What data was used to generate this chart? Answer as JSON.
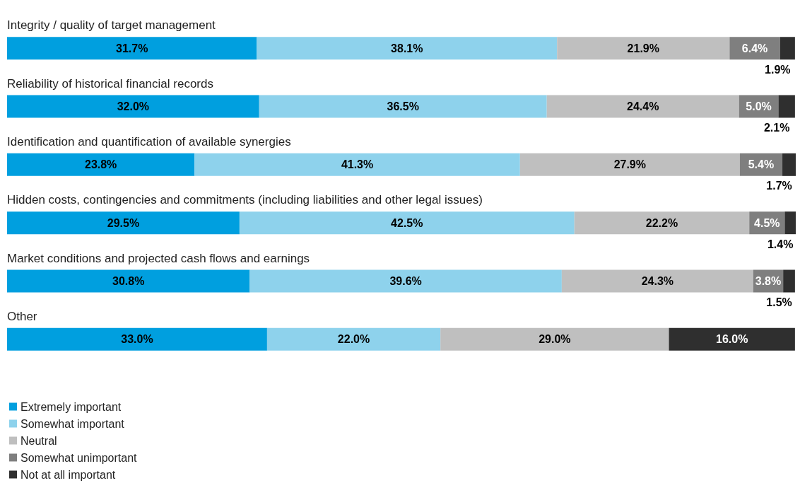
{
  "chart_data": {
    "type": "bar",
    "orientation": "horizontal",
    "stacked": true,
    "legend": "bottom left",
    "categories": [
      "Integrity / quality of target management",
      "Reliability of historical financial records",
      "Identification and quantification of available synergies",
      "Hidden costs, contingencies and commitments (including liabilities and other legal issues)",
      "Market conditions and projected cash flows and earnings",
      "Other"
    ],
    "series": [
      {
        "name": "Extremely important",
        "color": "#009fdf",
        "values": [
          31.7,
          32.0,
          23.8,
          29.5,
          30.8,
          33.0
        ],
        "value_labels": [
          "31.7%",
          "32.0%",
          "23.8%",
          "29.5%",
          "30.8%",
          "33.0%"
        ]
      },
      {
        "name": "Somewhat important",
        "color": "#8ed2ec",
        "values": [
          38.1,
          36.5,
          41.3,
          42.5,
          39.6,
          22.0
        ],
        "value_labels": [
          "38.1%",
          "36.5%",
          "41.3%",
          "42.5%",
          "39.6%",
          "22.0%"
        ]
      },
      {
        "name": "Neutral",
        "color": "#bfbfbf",
        "values": [
          21.9,
          24.4,
          27.9,
          22.2,
          24.3,
          29.0
        ],
        "value_labels": [
          "21.9%",
          "24.4%",
          "27.9%",
          "22.2%",
          "24.3%",
          "29.0%"
        ]
      },
      {
        "name": "Somewhat unimportant",
        "color": "#7f7f7f",
        "values": [
          6.4,
          5.0,
          5.4,
          4.5,
          3.8,
          null
        ],
        "value_labels": [
          "6.4%",
          "5.0%",
          "5.4%",
          "4.5%",
          "3.8%",
          null
        ]
      },
      {
        "name": "Not at all important",
        "color": "#2f2f2f",
        "values": [
          1.9,
          2.1,
          1.7,
          1.4,
          1.5,
          16.0
        ],
        "value_labels": [
          "1.9%",
          "2.1%",
          "1.7%",
          "1.4%",
          "1.5%",
          "16.0%"
        ]
      }
    ]
  }
}
